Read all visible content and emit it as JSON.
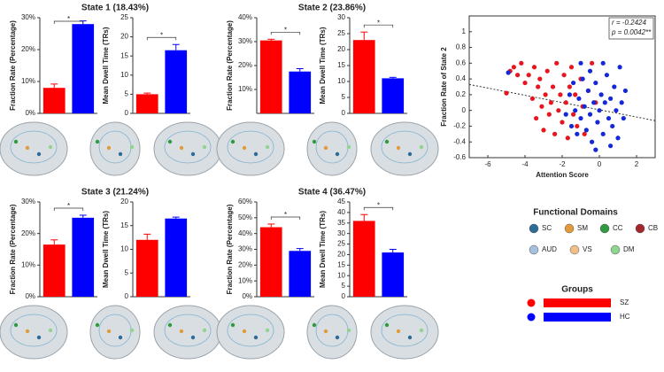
{
  "states": [
    "State 1 (18.43%)",
    "State 2 (23.86%)",
    "State 3 (21.24%)",
    "State 4 (36.47%)"
  ],
  "chart_data": [
    {
      "type": "bar",
      "ylabel": "Fraction Rate (Percentage)",
      "categories": [
        null,
        null
      ],
      "values": [
        8,
        28
      ],
      "errors": [
        1.2,
        1
      ],
      "colors": [
        "#ff0000",
        "#0000ff"
      ],
      "ylim": [
        0,
        30
      ],
      "yticks": [
        {
          "value": 0,
          "label": "0%"
        },
        {
          "value": 10,
          "label": "10%"
        },
        {
          "value": 20,
          "label": "20%"
        },
        {
          "value": 30,
          "label": "30%"
        }
      ],
      "annotation": "*"
    },
    {
      "type": "bar",
      "ylabel": "Mean Dwell Time (TRs)",
      "categories": [
        null,
        null
      ],
      "values": [
        5,
        16.5
      ],
      "errors": [
        0.3,
        1.5
      ],
      "colors": [
        "#ff0000",
        "#0000ff"
      ],
      "ylim": [
        0,
        25
      ],
      "yticks": [
        0,
        5,
        10,
        15,
        20,
        25
      ],
      "annotation": "*"
    },
    {
      "type": "bar",
      "ylabel": "Fraction Rate (Percentage)",
      "categories": [
        null,
        null
      ],
      "values": [
        30.5,
        17.5
      ],
      "errors": [
        0.5,
        1.2
      ],
      "colors": [
        "#ff0000",
        "#0000ff"
      ],
      "ylim": [
        0,
        40
      ],
      "yticks": [
        {
          "value": 10,
          "label": "10%"
        },
        {
          "value": 20,
          "label": "20%"
        },
        {
          "value": 30,
          "label": "30%"
        },
        {
          "value": 40,
          "label": "40%"
        }
      ],
      "annotation": "*"
    },
    {
      "type": "bar",
      "ylabel": "Mean Dwell Time (TRs)",
      "categories": [
        null,
        null
      ],
      "values": [
        23,
        11
      ],
      "errors": [
        2.5,
        0.3
      ],
      "colors": [
        "#ff0000",
        "#0000ff"
      ],
      "ylim": [
        0,
        30
      ],
      "yticks": [
        0,
        5,
        10,
        15,
        20,
        25,
        30
      ],
      "annotation": "*"
    },
    {
      "type": "bar",
      "ylabel": "Fraction Rate (Percentage)",
      "categories": [
        null,
        null
      ],
      "values": [
        16.5,
        25
      ],
      "errors": [
        1.5,
        0.8
      ],
      "colors": [
        "#ff0000",
        "#0000ff"
      ],
      "ylim": [
        0,
        30
      ],
      "yticks": [
        {
          "value": 0,
          "label": "0%"
        },
        {
          "value": 10,
          "label": "10%"
        },
        {
          "value": 20,
          "label": "20%"
        },
        {
          "value": 30,
          "label": "30%"
        }
      ],
      "annotation": "*"
    },
    {
      "type": "bar",
      "ylabel": "Mean Dwell Time (TRs)",
      "categories": [
        null,
        null
      ],
      "values": [
        12,
        16.5
      ],
      "errors": [
        1.2,
        0.3
      ],
      "colors": [
        "#ff0000",
        "#0000ff"
      ],
      "ylim": [
        0,
        20
      ],
      "yticks": [
        0,
        5,
        10,
        15,
        20
      ]
    },
    {
      "type": "bar",
      "ylabel": "Fraction Rate (Percentage)",
      "categories": [
        null,
        null
      ],
      "values": [
        44,
        29
      ],
      "errors": [
        2,
        1.5
      ],
      "colors": [
        "#ff0000",
        "#0000ff"
      ],
      "ylim": [
        0,
        60
      ],
      "yticks": [
        {
          "value": 0,
          "label": "0%"
        },
        {
          "value": 10,
          "label": "10%"
        },
        {
          "value": 20,
          "label": "20%"
        },
        {
          "value": 30,
          "label": "30%"
        },
        {
          "value": 40,
          "label": "40%"
        },
        {
          "value": 50,
          "label": "50%"
        },
        {
          "value": 60,
          "label": "60%"
        }
      ],
      "annotation": "*"
    },
    {
      "type": "bar",
      "ylabel": "Mean Dwell Time (TRs)",
      "categories": [
        null,
        null
      ],
      "values": [
        36,
        21
      ],
      "errors": [
        3,
        1.5
      ],
      "colors": [
        "#ff0000",
        "#0000ff"
      ],
      "ylim": [
        0,
        45
      ],
      "yticks": [
        0,
        5,
        10,
        15,
        20,
        25,
        30,
        35,
        40,
        45
      ],
      "annotation": "*"
    },
    {
      "type": "scatter",
      "xlabel": "Attention Score",
      "ylabel": "Fraction Rate of State 2",
      "xlim": [
        -7,
        3
      ],
      "ylim": [
        -0.6,
        1.2
      ],
      "xticks": [
        -6,
        -4,
        -2,
        0,
        2
      ],
      "yticks": [
        -0.6,
        -0.4,
        -0.2,
        0,
        0.2,
        0.4,
        0.6,
        0.8,
        1
      ],
      "annotations": [
        "r = -0.2424",
        "p = 0.0042**"
      ],
      "trend": {
        "x": [
          -7,
          3
        ],
        "values": [
          0.33,
          -0.13
        ]
      },
      "series": [
        {
          "name": "SZ",
          "color": "#e8141e",
          "x": [
            -5.0,
            -4.8,
            -4.6,
            -4.4,
            -4.2,
            -4.0,
            -3.8,
            -3.6,
            -3.5,
            -3.4,
            -3.3,
            -3.2,
            -3.1,
            -3.0,
            -2.9,
            -2.8,
            -2.7,
            -2.6,
            -2.5,
            -2.4,
            -2.3,
            -2.2,
            -2.1,
            -2.0,
            -1.9,
            -1.8,
            -1.7,
            -1.6,
            -1.5,
            -1.4,
            -1.3,
            -1.2,
            -1.0,
            -0.9,
            -0.8,
            -0.6,
            -0.4,
            -0.2
          ],
          "values": [
            0.22,
            0.5,
            0.55,
            0.45,
            0.6,
            0.35,
            0.45,
            0.15,
            0.55,
            -0.1,
            0.3,
            0.4,
            0.05,
            -0.25,
            0.2,
            0.5,
            -0.05,
            0.1,
            0.3,
            -0.3,
            0.6,
            0.0,
            0.2,
            -0.15,
            0.45,
            0.1,
            -0.35,
            0.3,
            0.55,
            -0.05,
            0.2,
            -0.2,
            0.4,
            0.05,
            -0.3,
            0.25,
            0.6,
            0.1
          ]
        },
        {
          "name": "HC",
          "color": "#1428d8",
          "x": [
            -4.9,
            -1.8,
            -1.6,
            -1.5,
            -1.4,
            -1.3,
            -1.2,
            -1.1,
            -1.0,
            -0.9,
            -0.8,
            -0.7,
            -0.6,
            -0.5,
            -0.4,
            -0.3,
            -0.2,
            -0.1,
            0.0,
            0.1,
            0.2,
            0.3,
            0.4,
            0.5,
            0.6,
            0.7,
            0.8,
            0.9,
            1.0,
            1.1,
            1.2,
            1.3,
            1.4,
            -0.5,
            0.2,
            -1.0,
            0.6,
            -0.2
          ],
          "values": [
            0.48,
            -0.05,
            0.2,
            -0.2,
            0.35,
            0.0,
            -0.3,
            0.15,
            -0.1,
            0.4,
            0.05,
            -0.25,
            0.25,
            -0.05,
            -0.4,
            0.1,
            0.35,
            -0.15,
            0.0,
            0.2,
            -0.3,
            0.1,
            0.45,
            -0.1,
            0.15,
            -0.2,
            0.3,
            0.0,
            -0.35,
            0.55,
            0.1,
            -0.1,
            0.25,
            0.5,
            0.6,
            0.6,
            -0.45,
            -0.5
          ]
        }
      ]
    }
  ],
  "domain_legend": {
    "title": "Functional Domains",
    "items": [
      {
        "name": "SC",
        "color": "#2b6c98"
      },
      {
        "name": "SM",
        "color": "#e39a3b"
      },
      {
        "name": "CC",
        "color": "#2f9a3f"
      },
      {
        "name": "CB",
        "color": "#a3262a"
      },
      {
        "name": "AUD",
        "color": "#a4c2de"
      },
      {
        "name": "VS",
        "color": "#f1c089"
      },
      {
        "name": "DM",
        "color": "#8fd48f"
      }
    ]
  },
  "group_legend": {
    "title": "Groups",
    "items": [
      {
        "name": "SZ",
        "color": "#ff0000"
      },
      {
        "name": "HC",
        "color": "#0000ff"
      }
    ]
  }
}
